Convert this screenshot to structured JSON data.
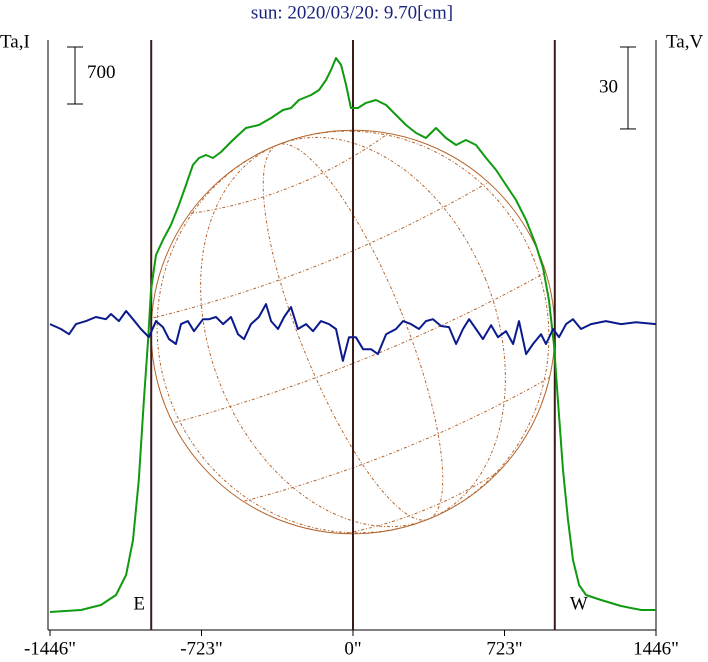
{
  "chart_data": {
    "type": "line",
    "title": "sun: 2020/03/20: 9.70[cm]",
    "y_label": "Ta,I",
    "y2_label": "Ta,V",
    "xlim": [
      -1446,
      1446
    ],
    "xticks": [
      {
        "value": -1446,
        "label": "-1446\""
      },
      {
        "value": -723,
        "label": "-723\""
      },
      {
        "value": 0,
        "label": "0\""
      },
      {
        "value": 723,
        "label": "723\""
      },
      {
        "value": 1446,
        "label": "1446\""
      }
    ],
    "ylim": [
      0,
      7245
    ],
    "y2lim": [
      -112,
      104
    ],
    "scale_bars": [
      {
        "axis": "y",
        "value": 700
      },
      {
        "axis": "y2",
        "value": 30
      }
    ],
    "markers": [
      {
        "x": -963,
        "label": "E"
      },
      {
        "x": 0
      },
      {
        "x": 963,
        "label": "W"
      }
    ],
    "disk_color": "#b5652e",
    "series": [
      {
        "name": "I",
        "color": "#109a10",
        "x": [
          -1446,
          -1298,
          -1203,
          -1131,
          -1083,
          -1050,
          -1022,
          -998,
          -978,
          -964,
          -940,
          -907,
          -869,
          -831,
          -797,
          -764,
          -735,
          -702,
          -668,
          -630,
          -573,
          -511,
          -449,
          -391,
          -334,
          -296,
          -258,
          -200,
          -162,
          -129,
          -105,
          -81,
          -57,
          -33,
          -10,
          24,
          62,
          110,
          158,
          205,
          253,
          301,
          348,
          396,
          444,
          492,
          539,
          587,
          635,
          683,
          730,
          778,
          826,
          873,
          907,
          935,
          959,
          978,
          1002,
          1026,
          1050,
          1079,
          1112,
          1184,
          1279,
          1375,
          1446
        ],
        "values": [
          221,
          246,
          307,
          430,
          675,
          1105,
          1842,
          2824,
          3561,
          4175,
          4605,
          4789,
          4973,
          5219,
          5465,
          5710,
          5796,
          5833,
          5796,
          5870,
          6017,
          6165,
          6201,
          6287,
          6386,
          6410,
          6508,
          6570,
          6631,
          6754,
          6877,
          7024,
          6938,
          6693,
          6410,
          6410,
          6472,
          6508,
          6447,
          6324,
          6201,
          6103,
          6042,
          6165,
          6042,
          5956,
          6017,
          5956,
          5796,
          5649,
          5465,
          5280,
          5035,
          4728,
          4445,
          4052,
          3500,
          2824,
          1965,
          1351,
          860,
          553,
          430,
          368,
          295,
          246,
          246
        ]
      },
      {
        "name": "V",
        "color": "#0a1a8c",
        "axis": "y2",
        "x": [
          -1446,
          -1394,
          -1355,
          -1322,
          -1274,
          -1227,
          -1179,
          -1155,
          -1117,
          -1083,
          -1050,
          -1012,
          -974,
          -940,
          -907,
          -878,
          -845,
          -821,
          -788,
          -759,
          -716,
          -687,
          -654,
          -620,
          -582,
          -549,
          -520,
          -487,
          -449,
          -415,
          -391,
          -358,
          -329,
          -296,
          -263,
          -224,
          -191,
          -153,
          -115,
          -81,
          -48,
          -19,
          14,
          48,
          86,
          119,
          158,
          205,
          239,
          277,
          315,
          348,
          382,
          420,
          458,
          492,
          525,
          554,
          587,
          620,
          659,
          692,
          730,
          764,
          792,
          826,
          859,
          897,
          921,
          955,
          983,
          1017,
          1050,
          1088,
          1136,
          1207,
          1279,
          1351,
          1446
        ],
        "values": [
          0,
          -1.8,
          -3.7,
          0,
          1.1,
          2.6,
          1.8,
          3.7,
          1.1,
          4.8,
          1.8,
          -1.8,
          -4.8,
          1.1,
          -1.1,
          -5.5,
          -7.3,
          0,
          1.1,
          -2.6,
          1.8,
          1.8,
          2.6,
          0,
          2.6,
          -3.7,
          -5.5,
          0,
          2.6,
          7.3,
          1.1,
          -1.8,
          2.6,
          6.2,
          -1.8,
          0,
          -2.6,
          1.1,
          0,
          -1.8,
          -13.5,
          -4.8,
          -4.8,
          -9.2,
          -9.2,
          -11,
          -3.7,
          -1.8,
          1.1,
          0,
          -1.8,
          1.1,
          1.8,
          -0.7,
          -1.1,
          -7.3,
          -1.8,
          1.8,
          -1.8,
          -5.5,
          -0.4,
          -4.8,
          -2.6,
          -7.3,
          1.1,
          -11,
          -7.3,
          -3.7,
          -7.3,
          -1.8,
          -4.8,
          0,
          1.8,
          -1.8,
          0,
          1.1,
          0,
          0.7,
          0
        ]
      }
    ]
  }
}
